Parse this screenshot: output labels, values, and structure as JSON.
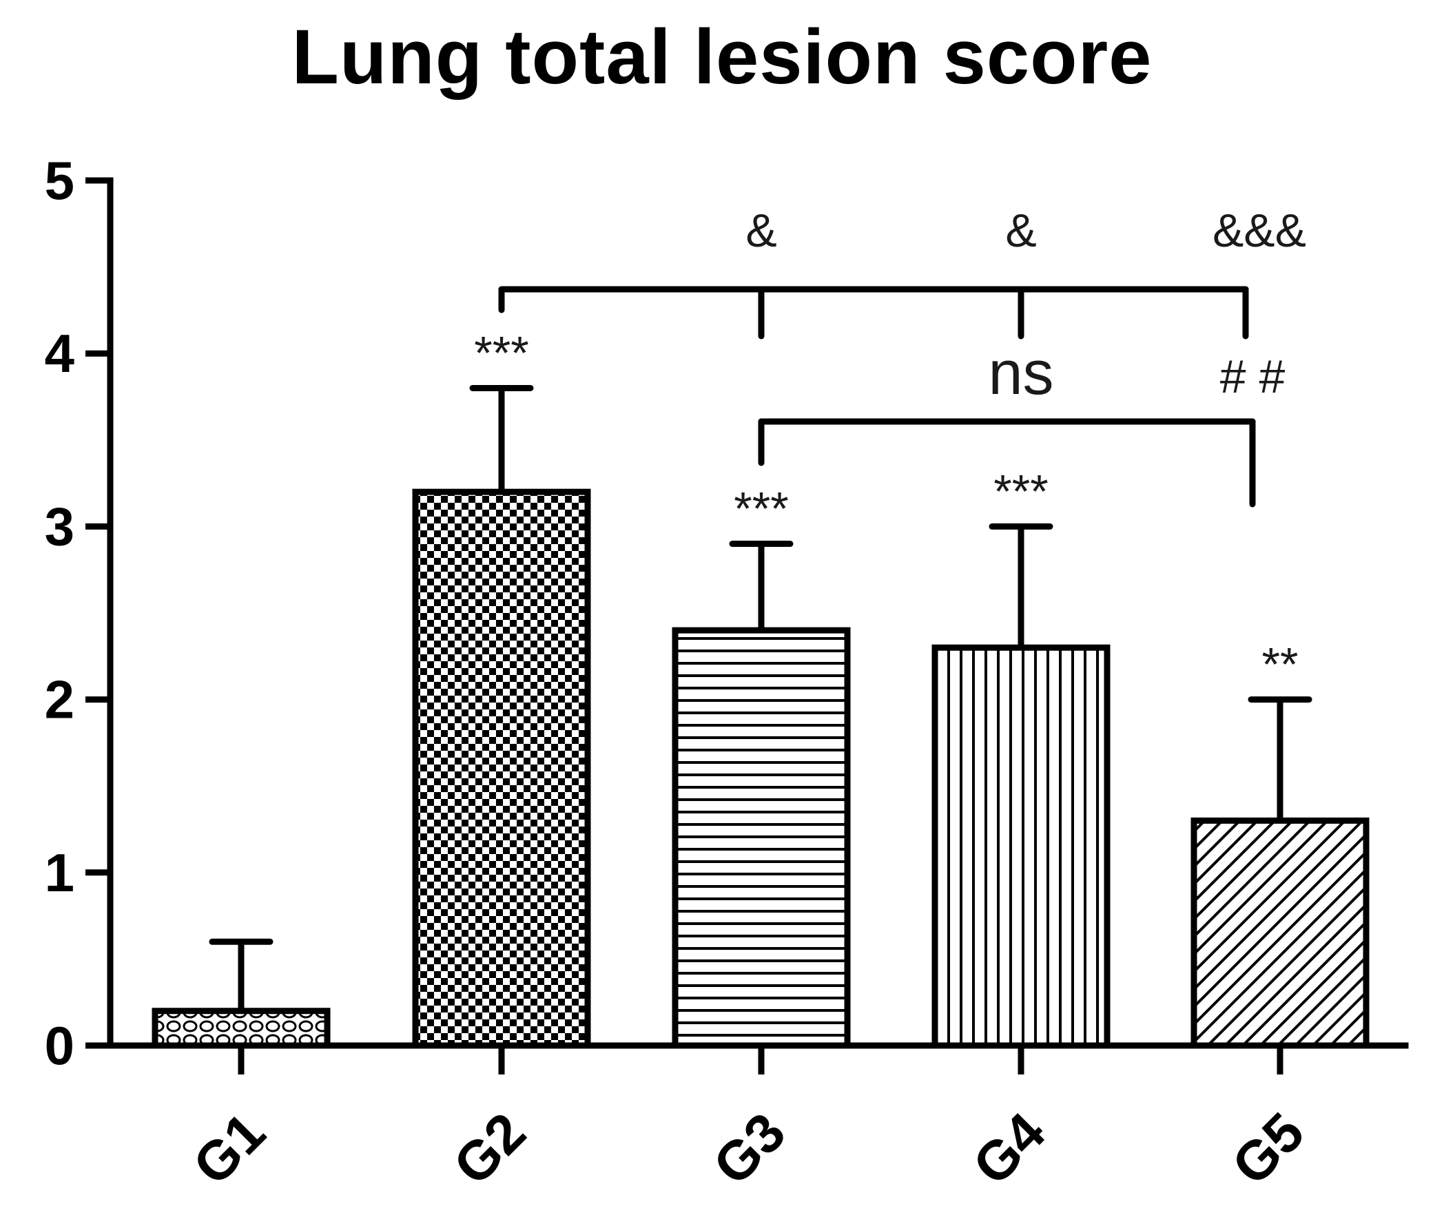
{
  "chart_data": {
    "type": "bar",
    "title": "Lung total lesion score",
    "xlabel": "",
    "ylabel": "",
    "ylim": [
      0,
      5
    ],
    "yticks": [
      0,
      1,
      2,
      3,
      4,
      5
    ],
    "grid": false,
    "categories": [
      "G1",
      "G2",
      "G3",
      "G4",
      "G5"
    ],
    "values": [
      0.2,
      3.2,
      2.4,
      2.3,
      1.3
    ],
    "error_upper": [
      0.6,
      3.8,
      2.9,
      3.0,
      2.0
    ],
    "fill_patterns": [
      "dots",
      "checker",
      "horizontal-lines",
      "vertical-lines",
      "diagonal-lines"
    ],
    "bar_significance": [
      "",
      "***",
      "***",
      "***",
      "**"
    ],
    "comparisons": [
      {
        "from": "G2",
        "to": "G3",
        "label": "&"
      },
      {
        "from": "G2",
        "to": "G4",
        "label": "&"
      },
      {
        "from": "G2",
        "to": "G5",
        "label": "&&&"
      },
      {
        "from": "G3",
        "to": "G4",
        "label": "ns"
      },
      {
        "from": "G3",
        "to": "G5",
        "label": "# #"
      }
    ]
  }
}
